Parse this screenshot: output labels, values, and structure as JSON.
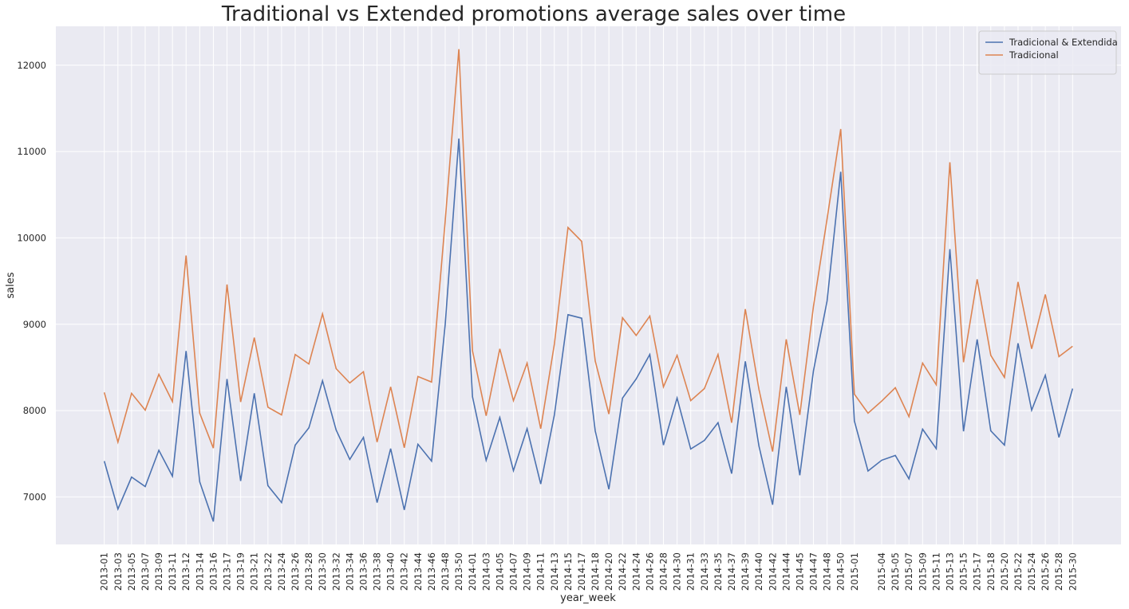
{
  "chart_data": {
    "type": "line",
    "title": "Traditional vs Extended promotions average sales over time",
    "x_label": "year_week",
    "y_label": "sales",
    "categories": [
      "2013-01",
      "2013-03",
      "2013-05",
      "2013-07",
      "2013-09",
      "2013-11",
      "2013-12",
      "2013-14",
      "2013-16",
      "2013-17",
      "2013-19",
      "2013-21",
      "2013-22",
      "2013-24",
      "2013-26",
      "2013-28",
      "2013-30",
      "2013-32",
      "2013-34",
      "2013-36",
      "2013-38",
      "2013-40",
      "2013-42",
      "2013-44",
      "2013-46",
      "2013-48",
      "2013-50",
      "2014-01",
      "2014-03",
      "2014-05",
      "2014-07",
      "2014-09",
      "2014-11",
      "2014-13",
      "2014-15",
      "2014-17",
      "2014-18",
      "2014-20",
      "2014-22",
      "2014-24",
      "2014-26",
      "2014-28",
      "2014-30",
      "2014-31",
      "2014-33",
      "2014-35",
      "2014-37",
      "2014-39",
      "2014-40",
      "2014-42",
      "2014-44",
      "2014-45",
      "2014-47",
      "2014-48",
      "2014-50",
      "2015-01",
      null,
      "2015-04",
      "2015-05",
      "2015-07",
      "2015-09",
      "2015-11",
      "2015-13",
      "2015-15",
      "2015-17",
      "2015-18",
      "2015-20",
      "2015-22",
      "2015-24",
      "2015-26",
      "2015-28",
      "2015-30"
    ],
    "series": [
      {
        "name": "Tradicional & Extendida",
        "color": "#4c72b0",
        "values": [
          7415,
          6860,
          7230,
          7120,
          7540,
          7240,
          8690,
          7175,
          6715,
          8365,
          7185,
          8200,
          7130,
          6935,
          7600,
          7800,
          8345,
          7775,
          7435,
          7690,
          6935,
          7560,
          6850,
          7610,
          7415,
          9000,
          11150,
          8160,
          7425,
          7920,
          7305,
          7790,
          7150,
          7950,
          9110,
          9070,
          7765,
          7090,
          8145,
          8365,
          8650,
          7600,
          8145,
          7555,
          7655,
          7860,
          7270,
          8570,
          7590,
          6910,
          8275,
          7250,
          8460,
          9270,
          10765,
          7880,
          7300,
          7425,
          7480,
          7210,
          7785,
          7560,
          9870,
          7760,
          8825,
          7765,
          7600,
          8780,
          8005,
          8410,
          7690,
          8255
        ]
      },
      {
        "name": "Tradicional",
        "color": "#dd8452",
        "values": [
          8210,
          7635,
          8200,
          8005,
          8420,
          8105,
          9795,
          7970,
          7565,
          9460,
          8100,
          8845,
          8040,
          7950,
          8650,
          8540,
          9120,
          8485,
          8320,
          8450,
          7635,
          8275,
          7570,
          8395,
          8330,
          10200,
          12185,
          8690,
          7940,
          8715,
          8115,
          8550,
          7790,
          8770,
          10120,
          9960,
          8575,
          7960,
          9075,
          8870,
          9095,
          8275,
          8640,
          8115,
          8255,
          8650,
          7860,
          9175,
          8245,
          7525,
          8825,
          7950,
          9205,
          10220,
          11260,
          8190,
          7970,
          8110,
          8265,
          7930,
          8550,
          8300,
          10875,
          8560,
          9520,
          8640,
          8385,
          9490,
          8715,
          9345,
          8625,
          8745
        ]
      }
    ],
    "ylim": [
      6450,
      12450
    ],
    "yticks": [
      7000,
      8000,
      9000,
      10000,
      11000,
      12000
    ],
    "grid": true,
    "legend": "upper right"
  }
}
